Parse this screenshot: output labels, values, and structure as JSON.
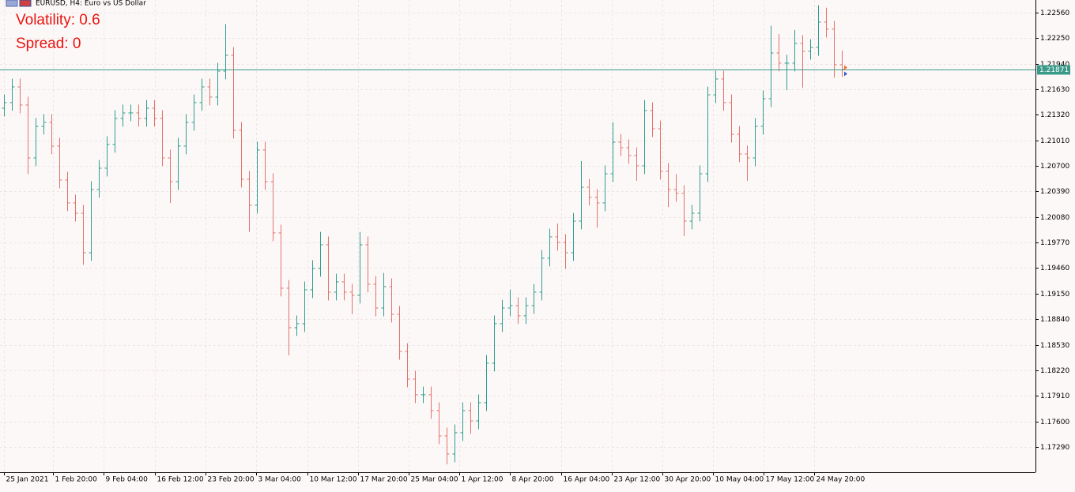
{
  "chart_data": {
    "type": "ohlc",
    "title": "EURUSD, H4:  Euro vs US Dollar",
    "annotations": [
      "Volatility: 0.6",
      "Spread: 0"
    ],
    "up_color": "#2e9e8e",
    "down_color": "#e0736b",
    "grid": true,
    "price_line": 1.21871,
    "xlim": [
      -0.5,
      130.5
    ],
    "xticks": [
      {
        "value": 0,
        "label": "25 Jan 2021"
      },
      {
        "value": 6.2,
        "label": "1 Feb 20:00"
      },
      {
        "value": 12.6,
        "label": "9 Feb 04:00"
      },
      {
        "value": 19.1,
        "label": "16 Feb 12:00"
      },
      {
        "value": 25.5,
        "label": "23 Feb 20:00"
      },
      {
        "value": 31.9,
        "label": "3 Mar 04:00"
      },
      {
        "value": 38.4,
        "label": "10 Mar 12:00"
      },
      {
        "value": 44.8,
        "label": "17 Mar 20:00"
      },
      {
        "value": 51.2,
        "label": "25 Mar 04:00"
      },
      {
        "value": 57.6,
        "label": "1 Apr 12:00"
      },
      {
        "value": 64,
        "label": "8 Apr 20:00"
      },
      {
        "value": 70.5,
        "label": "16 Apr 04:00"
      },
      {
        "value": 76.9,
        "label": "23 Apr 12:00"
      },
      {
        "value": 83.3,
        "label": "30 Apr 20:00"
      },
      {
        "value": 89.7,
        "label": "10 May 04:00"
      },
      {
        "value": 96.1,
        "label": "17 May 12:00"
      },
      {
        "value": 102.5,
        "label": "24 May 20:00"
      }
    ],
    "ylim": [
      1.16983,
      1.22713
    ],
    "yticks": [
      {
        "value": 1.2256,
        "label": "1.22560"
      },
      {
        "value": 1.2225,
        "label": "1.22250"
      },
      {
        "value": 1.2194,
        "label": "1.21940"
      },
      {
        "value": 1.2163,
        "label": "1.21630"
      },
      {
        "value": 1.2132,
        "label": "1.21320"
      },
      {
        "value": 1.2101,
        "label": "1.21010"
      },
      {
        "value": 1.207,
        "label": "1.20700"
      },
      {
        "value": 1.2039,
        "label": "1.20390"
      },
      {
        "value": 1.2008,
        "label": "1.20080"
      },
      {
        "value": 1.1977,
        "label": "1.19770"
      },
      {
        "value": 1.1946,
        "label": "1.19460"
      },
      {
        "value": 1.1915,
        "label": "1.19150"
      },
      {
        "value": 1.1884,
        "label": "1.18840"
      },
      {
        "value": 1.1853,
        "label": "1.18530"
      },
      {
        "value": 1.1822,
        "label": "1.18220"
      },
      {
        "value": 1.1791,
        "label": "1.17910"
      },
      {
        "value": 1.176,
        "label": "1.17600"
      },
      {
        "value": 1.1729,
        "label": "1.17290"
      }
    ],
    "open": [
      1.214,
      1.21468,
      1.21659,
      1.21439,
      1.20797,
      1.2118,
      1.21228,
      1.20941,
      1.20529,
      1.20251,
      1.20126,
      1.19647,
      1.20414,
      1.20672,
      1.2096,
      1.21276,
      1.21343,
      1.21343,
      1.21276,
      1.214,
      1.21276,
      1.20797,
      1.20509,
      1.20941,
      1.21228,
      1.21468,
      1.21659,
      1.21535,
      1.21851,
      1.22042,
      1.21132,
      1.20538,
      1.20222,
      1.20893,
      1.20509,
      1.19887,
      1.19216,
      1.18737,
      1.18785,
      1.19197,
      1.19456,
      1.19743,
      1.19168,
      1.19293,
      1.19168,
      1.1913,
      1.19743,
      1.19264,
      1.18976,
      1.19235,
      1.189,
      1.18449,
      1.18114,
      1.17923,
      1.17923,
      1.17731,
      1.17424,
      1.17204,
      1.17463,
      1.17731,
      1.17606,
      1.17827,
      1.18306,
      1.18785,
      1.18976,
      1.19005,
      1.18881,
      1.19005,
      1.19168,
      1.1958,
      1.19839,
      1.19772,
      1.19647,
      1.2003,
      1.20442,
      1.20318,
      1.20251,
      1.20605,
      1.20988,
      1.20921,
      1.20826,
      1.20701,
      1.21372,
      1.21151,
      1.20634,
      1.20414,
      1.20366,
      1.2003,
      1.20126,
      1.20605,
      1.21563,
      1.21755,
      1.21468,
      1.21084,
      1.20845,
      1.20797,
      1.2118,
      1.21515,
      1.22071,
      1.21947,
      1.21947,
      1.22186,
      1.2209,
      1.22138,
      1.22445,
      1.22359,
      1.21927
    ],
    "high": [
      1.21568,
      1.21759,
      1.21759,
      1.21539,
      1.2128,
      1.21328,
      1.21328,
      1.21041,
      1.20629,
      1.20351,
      1.20226,
      1.20514,
      1.20772,
      1.2106,
      1.21376,
      1.21443,
      1.21443,
      1.21443,
      1.215,
      1.215,
      1.21376,
      1.20897,
      1.21041,
      1.21328,
      1.21568,
      1.21759,
      1.21759,
      1.21951,
      1.2242,
      1.22142,
      1.21232,
      1.20638,
      1.20993,
      1.20993,
      1.20609,
      1.19987,
      1.19316,
      1.18885,
      1.19297,
      1.19556,
      1.199,
      1.19843,
      1.19393,
      1.19393,
      1.19268,
      1.199,
      1.19843,
      1.19364,
      1.194,
      1.19335,
      1.19,
      1.18549,
      1.18214,
      1.18023,
      1.18023,
      1.17831,
      1.17524,
      1.17563,
      1.17831,
      1.17831,
      1.17927,
      1.18406,
      1.18885,
      1.19076,
      1.192,
      1.19105,
      1.19105,
      1.19268,
      1.1968,
      1.19939,
      1.2,
      1.19872,
      1.2013,
      1.2076,
      1.20542,
      1.20418,
      1.20705,
      1.2123,
      1.21088,
      1.21021,
      1.20926,
      1.215,
      1.21472,
      1.21251,
      1.20734,
      1.206,
      1.20466,
      1.20226,
      1.20705,
      1.21663,
      1.21855,
      1.21855,
      1.21568,
      1.21184,
      1.20945,
      1.2128,
      1.21615,
      1.224,
      1.223,
      1.22047,
      1.2235,
      1.22286,
      1.22238,
      1.2265,
      1.2262,
      1.22459,
      1.221
    ],
    "low": [
      1.213,
      1.21368,
      1.21339,
      1.206,
      1.20697,
      1.2108,
      1.20841,
      1.20429,
      1.20151,
      1.20026,
      1.195,
      1.19547,
      1.20314,
      1.20572,
      1.2086,
      1.21176,
      1.21243,
      1.21176,
      1.21176,
      1.21176,
      1.20697,
      1.2025,
      1.20409,
      1.20841,
      1.21128,
      1.21368,
      1.21435,
      1.21435,
      1.21751,
      1.21032,
      1.20438,
      1.199,
      1.20122,
      1.20409,
      1.19787,
      1.19116,
      1.184,
      1.18637,
      1.18685,
      1.19097,
      1.19356,
      1.19068,
      1.19068,
      1.19068,
      1.189,
      1.1903,
      1.19164,
      1.18876,
      1.18876,
      1.188,
      1.18349,
      1.18014,
      1.17823,
      1.17823,
      1.17631,
      1.17324,
      1.1708,
      1.17104,
      1.17363,
      1.1745,
      1.17506,
      1.17727,
      1.18206,
      1.18685,
      1.18876,
      1.18781,
      1.18781,
      1.18905,
      1.19068,
      1.1948,
      1.19672,
      1.1945,
      1.19547,
      1.1993,
      1.20218,
      1.1995,
      1.20151,
      1.20505,
      1.20821,
      1.20726,
      1.2052,
      1.20601,
      1.21051,
      1.20534,
      1.202,
      1.20266,
      1.1985,
      1.1993,
      1.20026,
      1.20505,
      1.21463,
      1.21368,
      1.20984,
      1.20745,
      1.2052,
      1.20697,
      1.2108,
      1.21415,
      1.21847,
      1.2162,
      1.21847,
      1.2165,
      1.2199,
      1.22038,
      1.22259,
      1.2177,
      1.2178
    ],
    "close": [
      1.21468,
      1.21659,
      1.21439,
      1.20797,
      1.2118,
      1.21228,
      1.20941,
      1.20529,
      1.20251,
      1.20126,
      1.19647,
      1.20414,
      1.20672,
      1.2096,
      1.21276,
      1.21343,
      1.21343,
      1.21276,
      1.214,
      1.21276,
      1.20797,
      1.20509,
      1.20941,
      1.21228,
      1.21468,
      1.21659,
      1.21535,
      1.21851,
      1.22042,
      1.21132,
      1.20538,
      1.20222,
      1.20893,
      1.20509,
      1.19887,
      1.19216,
      1.18737,
      1.18785,
      1.19197,
      1.19456,
      1.19743,
      1.19168,
      1.19293,
      1.19168,
      1.1913,
      1.19743,
      1.19264,
      1.18976,
      1.19235,
      1.189,
      1.18449,
      1.18114,
      1.17923,
      1.17923,
      1.17731,
      1.17424,
      1.17204,
      1.17463,
      1.17731,
      1.17606,
      1.17827,
      1.18306,
      1.18785,
      1.18976,
      1.19005,
      1.18881,
      1.19005,
      1.19168,
      1.1958,
      1.19839,
      1.19772,
      1.19647,
      1.2003,
      1.20442,
      1.20318,
      1.20251,
      1.20605,
      1.20988,
      1.20921,
      1.20826,
      1.20701,
      1.21372,
      1.21151,
      1.20634,
      1.20414,
      1.20366,
      1.2003,
      1.20126,
      1.20605,
      1.21563,
      1.21755,
      1.21468,
      1.21084,
      1.20845,
      1.20797,
      1.2118,
      1.21515,
      1.22071,
      1.21947,
      1.21947,
      1.22186,
      1.2209,
      1.22138,
      1.22445,
      1.22359,
      1.21927,
      1.21871
    ]
  }
}
